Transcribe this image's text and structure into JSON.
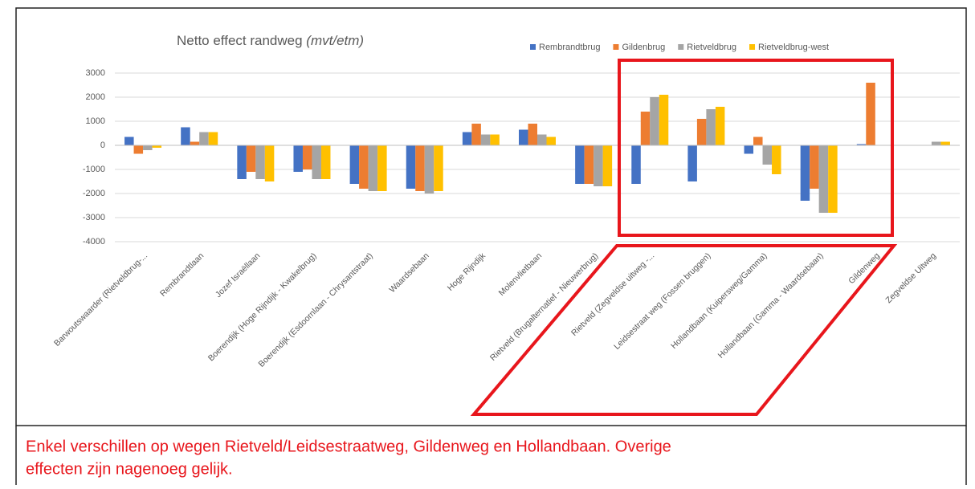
{
  "chart_data": {
    "type": "bar",
    "title": "Netto effect randweg",
    "title_unit": "(mvt/etm)",
    "categories": [
      "Barwoutswaarder (Rietveldbrug-...",
      "Rembrandtlaan",
      "Jozef Israëllaan",
      "Boerendijk (Hoge Rijndijk - Kwakelbrug)",
      "Boerendijk (Esdoornlaan - Chrysantstraat)",
      "Waardsebaan",
      "Hoge Rijndijk",
      "Molenvlietbaan",
      "Rietveld (Brugalternatief - Nieuwerbrug)",
      "Rietveld (Zegveldse uitweg -...",
      "Leidsestraat weg (Fossen bruggen)",
      "Hollandbaan (Kuipersweg/Gamma)",
      "Hollandbaan (Gamma - Waardsebaan)",
      "Gildenweg",
      "Zegveldse Uitweg"
    ],
    "series": [
      {
        "name": "Rembrandtbrug",
        "color": "#4472c4",
        "values": [
          350,
          750,
          -1400,
          -1100,
          -1600,
          -1800,
          550,
          650,
          -1600,
          -1600,
          -1500,
          -350,
          -2300,
          50,
          0
        ]
      },
      {
        "name": "Gildenbrug",
        "color": "#ed7d31",
        "values": [
          -350,
          150,
          -1100,
          -1000,
          -1800,
          -1900,
          900,
          900,
          -1600,
          1400,
          1100,
          350,
          -1800,
          2600,
          0
        ]
      },
      {
        "name": "Rietveldbrug",
        "color": "#a5a5a5",
        "values": [
          -200,
          550,
          -1400,
          -1400,
          -1900,
          -2000,
          450,
          450,
          -1700,
          2000,
          1500,
          -800,
          -2800,
          0,
          150
        ]
      },
      {
        "name": "Rietveldbrug-west",
        "color": "#ffc000",
        "values": [
          -100,
          550,
          -1500,
          -1400,
          -1900,
          -1900,
          450,
          350,
          -1700,
          2100,
          1600,
          -1200,
          -2800,
          0,
          150
        ]
      }
    ],
    "ylim": [
      -4000,
      3000
    ],
    "yticks": [
      -4000,
      -3000,
      -2000,
      -1000,
      0,
      1000,
      2000,
      3000
    ],
    "grid": true,
    "legend": "top-right",
    "annotation": [
      "Enkel verschillen op wegen Rietveld/Leidsestraatweg, Gildenweg en Hollandbaan. Overige",
      "effecten zijn nagenoeg gelijk."
    ]
  }
}
